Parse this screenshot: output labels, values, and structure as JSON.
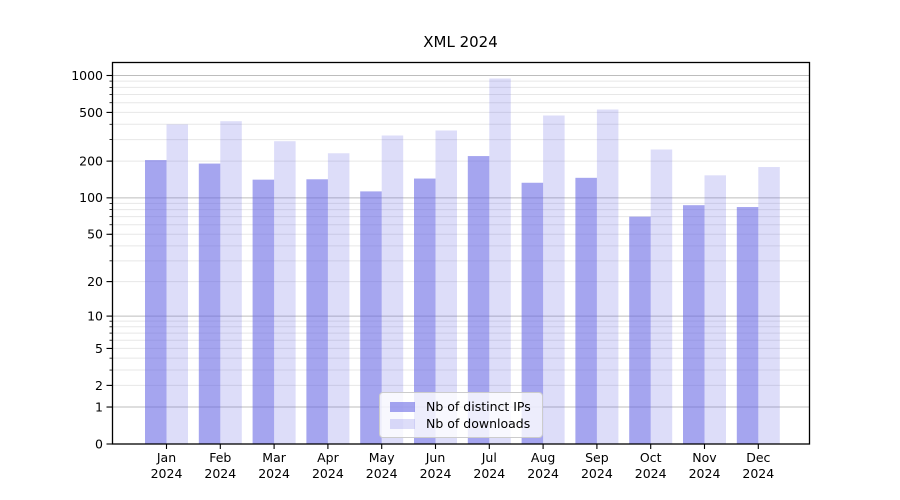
{
  "figure": {
    "title": "XML 2024",
    "background": "#ffffff",
    "frame_color": "#000000",
    "grid_major_color": "#bdbdbd",
    "grid_minor_color": "#e7e7e7"
  },
  "legend": {
    "position": "lower-center",
    "items": [
      {
        "label": "Nb of distinct IPs"
      },
      {
        "label": "Nb of downloads"
      }
    ]
  },
  "chart_data": {
    "type": "bar",
    "title": "XML 2024",
    "categories": [
      "Jan",
      "Feb",
      "Mar",
      "Apr",
      "May",
      "Jun",
      "Jul",
      "Aug",
      "Sep",
      "Oct",
      "Nov",
      "Dec"
    ],
    "year_suffix": "2024",
    "series": [
      {
        "name": "Nb of distinct IPs",
        "color": "rgba(100,100,228,0.58)",
        "values": [
          204,
          191,
          141,
          142,
          113,
          144,
          220,
          133,
          146,
          70,
          87,
          84
        ]
      },
      {
        "name": "Nb of downloads",
        "color": "rgba(100,100,228,0.22)",
        "values": [
          399,
          424,
          291,
          232,
          324,
          356,
          945,
          472,
          528,
          249,
          153,
          179
        ]
      }
    ],
    "xlabel": "",
    "ylabel": "",
    "yscale": "log10(x+1)",
    "yticks": [
      0,
      1,
      2,
      5,
      10,
      20,
      50,
      100,
      200,
      500,
      1000
    ],
    "ylim": [
      0,
      1270
    ],
    "grid": "horizontal-both",
    "legend_position": "lower-center"
  }
}
